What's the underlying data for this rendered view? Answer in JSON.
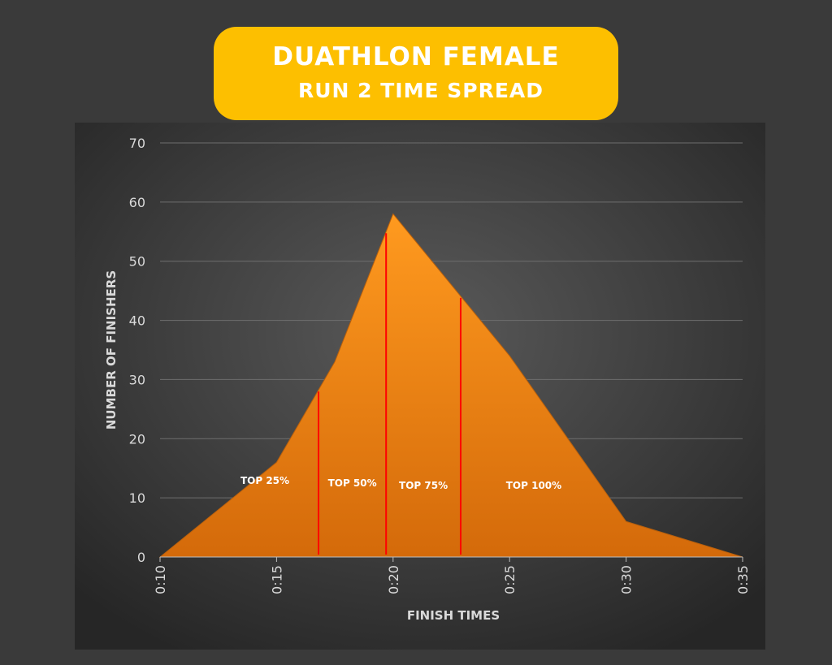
{
  "title": {
    "line1": "DUATHLON FEMALE",
    "line2": "RUN 2 TIME SPREAD"
  },
  "chart_data": {
    "type": "area",
    "xlabel": "FINISH TIMES",
    "ylabel": "NUMBER OF FINISHERS",
    "x_ticks": [
      "0:10",
      "0:15",
      "0:20",
      "0:25",
      "0:30",
      "0:35"
    ],
    "y_ticks": [
      0,
      10,
      20,
      30,
      40,
      50,
      60,
      70
    ],
    "xlim": [
      10,
      35
    ],
    "ylim": [
      0,
      70
    ],
    "grid": true,
    "series": [
      {
        "x": [
          10,
          12.5,
          15,
          17.5,
          20,
          22.5,
          25,
          27.5,
          30,
          35
        ],
        "values": [
          0,
          8,
          16,
          33,
          58,
          46,
          34,
          20,
          6,
          0
        ]
      }
    ],
    "markers": [
      {
        "x": 16.8,
        "label": "TOP 25%"
      },
      {
        "x": 19.7,
        "label": "TOP 50%"
      },
      {
        "x": 22.9,
        "label": "TOP 75%"
      },
      {
        "x": 35,
        "label": "TOP 100%"
      }
    ],
    "colors": {
      "fill_top": "#ff9a1f",
      "fill_bottom": "#d46a0a",
      "marker": "#ff0000",
      "grid": "#6e6e6e",
      "text": "#d9d9d9"
    }
  }
}
